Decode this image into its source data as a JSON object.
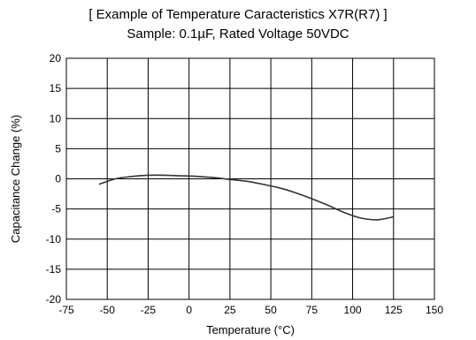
{
  "chart_data": {
    "type": "line",
    "title": "[ Example of Temperature Caracteristics X7R(R7) ]",
    "subtitle": "Sample: 0.1µF, Rated Voltage 50VDC",
    "xlabel": "Temperature (°C)",
    "ylabel": "Capacitance Change (%)",
    "xlim": [
      -75,
      150
    ],
    "ylim": [
      -20,
      20
    ],
    "xticks": [
      -75,
      -50,
      -25,
      0,
      25,
      50,
      75,
      100,
      125,
      150
    ],
    "yticks": [
      20,
      15,
      10,
      5,
      0,
      -5,
      -10,
      -15,
      -20
    ],
    "grid": true,
    "legend": "none",
    "series": [
      {
        "color": "#333333",
        "x": [
          -55,
          -45,
          -35,
          -25,
          -15,
          -5,
          5,
          15,
          25,
          35,
          45,
          55,
          65,
          75,
          85,
          95,
          105,
          115,
          125
        ],
        "y": [
          -0.9,
          0.0,
          0.4,
          0.6,
          0.6,
          0.5,
          0.4,
          0.2,
          -0.1,
          -0.4,
          -0.9,
          -1.5,
          -2.3,
          -3.3,
          -4.4,
          -5.6,
          -6.5,
          -6.8,
          -6.3
        ]
      }
    ]
  }
}
